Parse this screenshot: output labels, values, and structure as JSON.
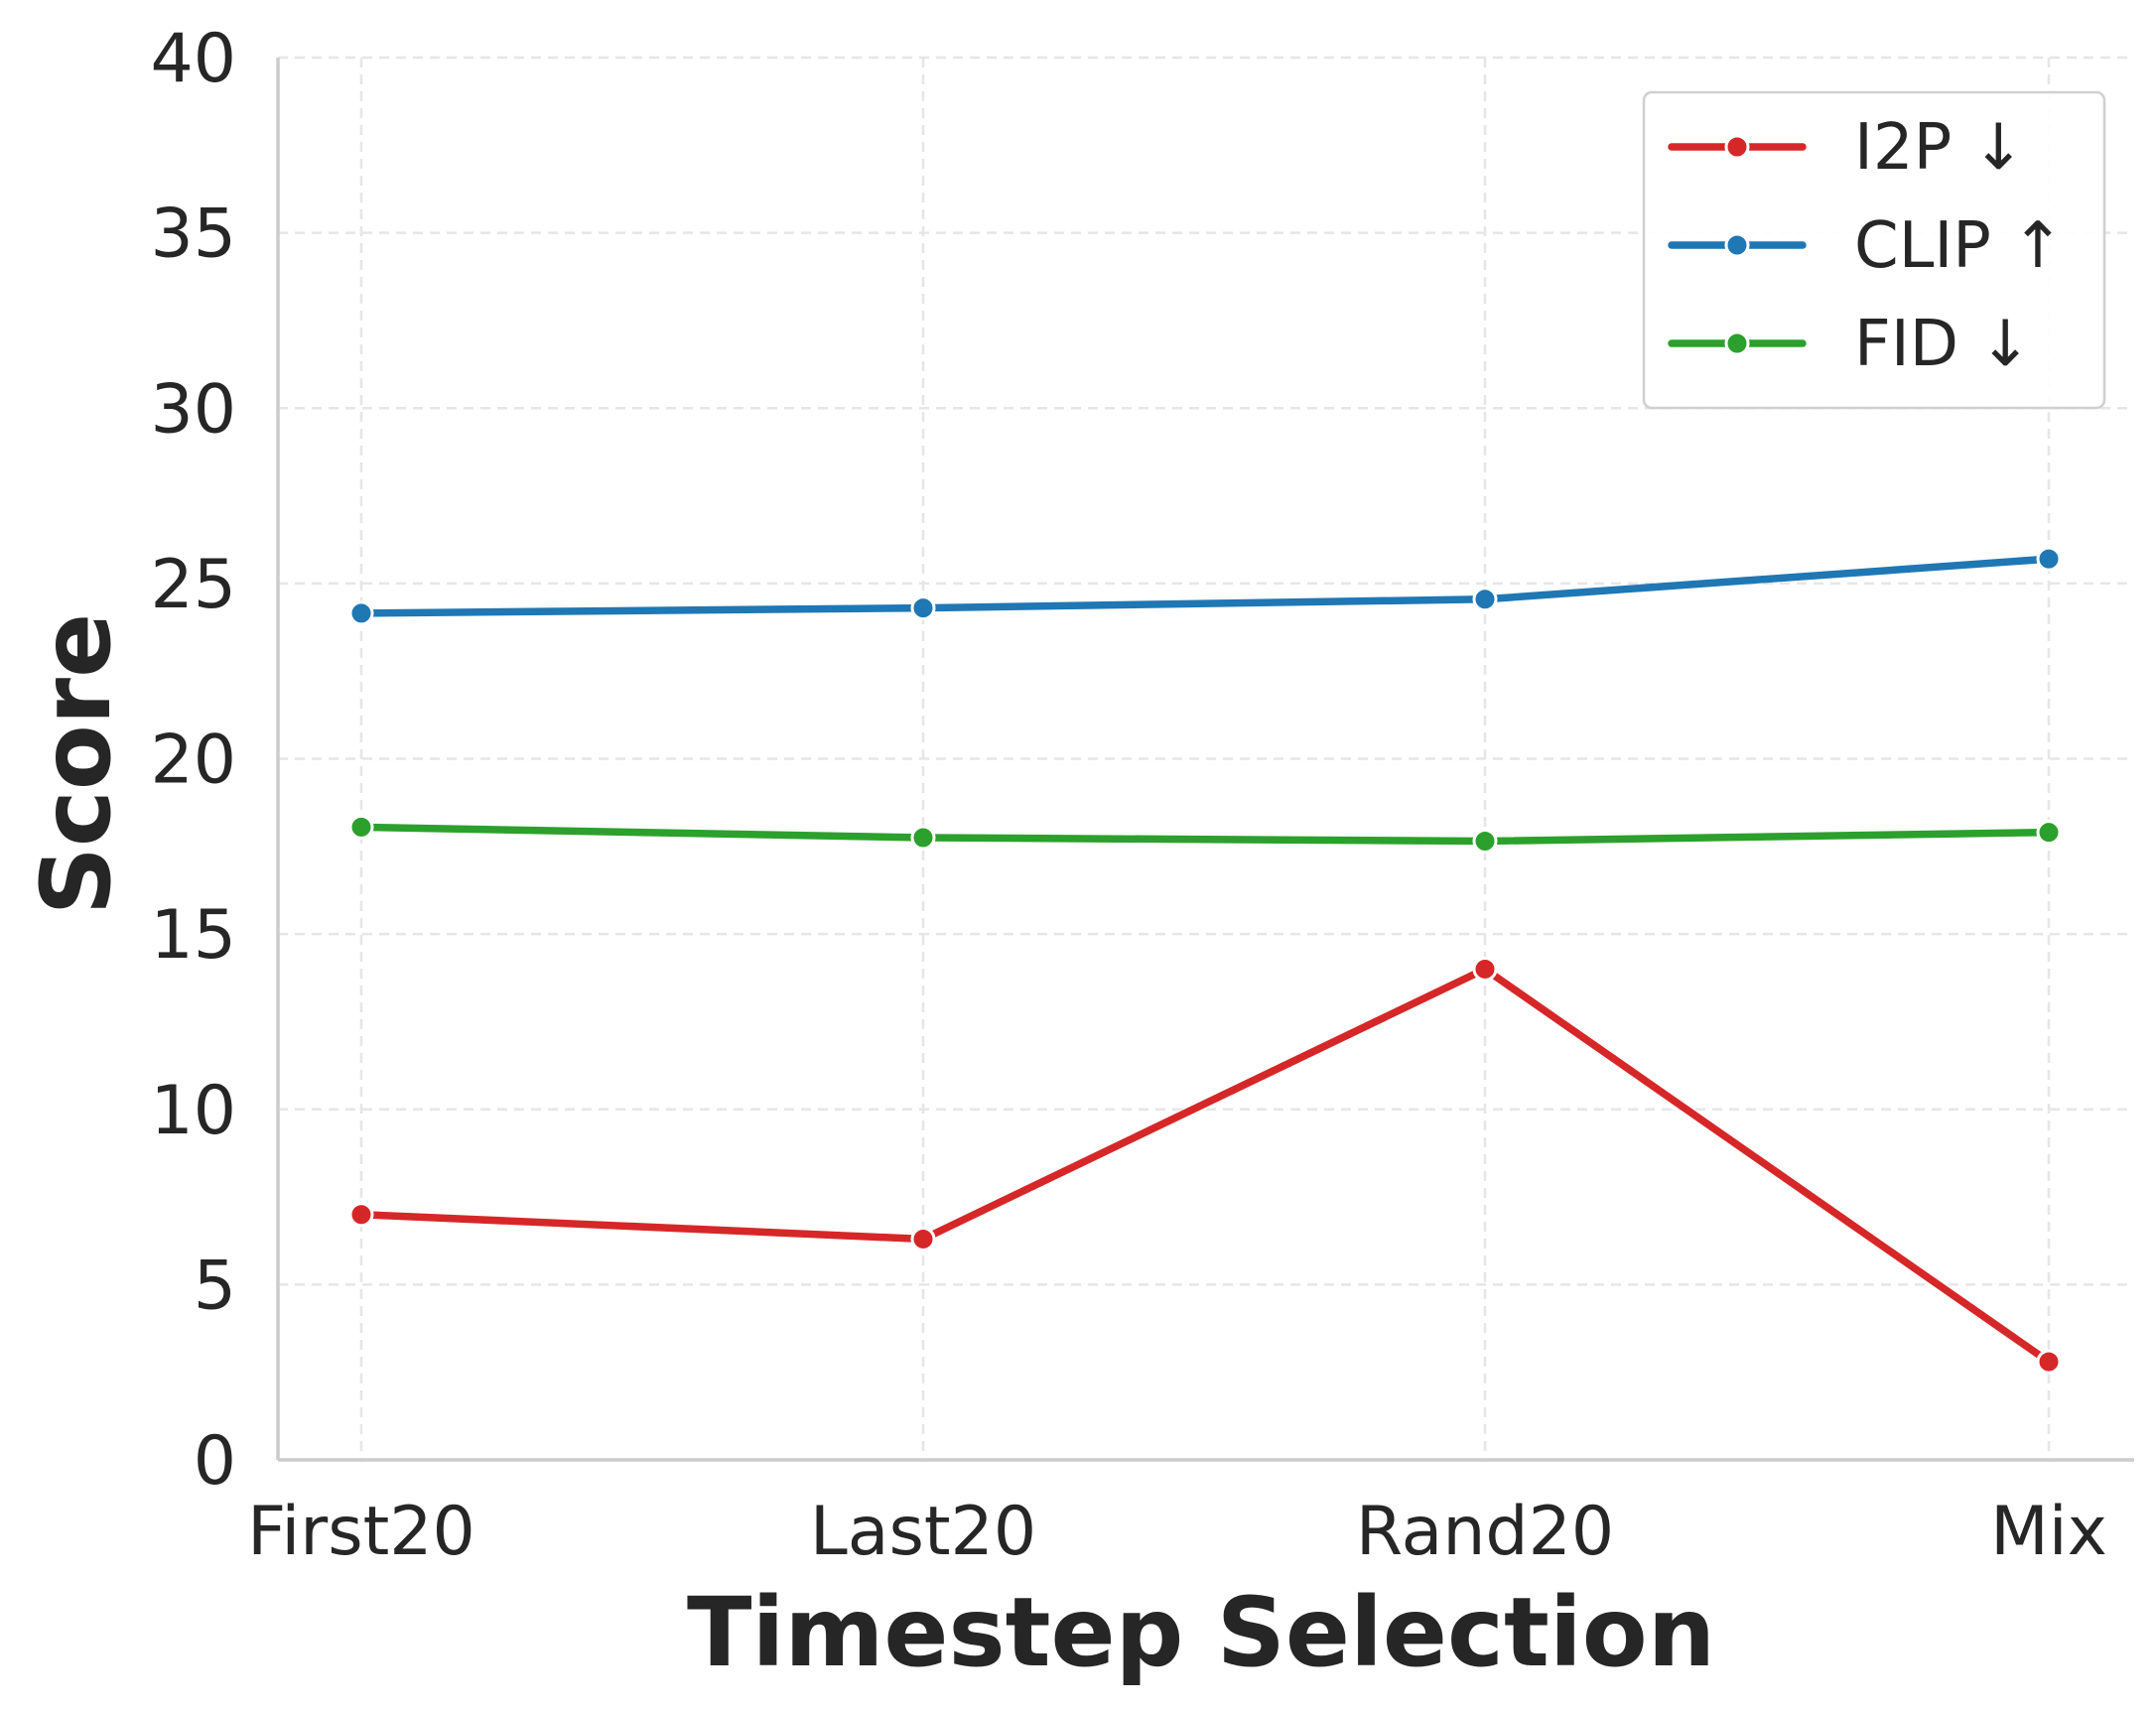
{
  "chart_data": {
    "type": "line",
    "categories": [
      "First20",
      "Last20",
      "Rand20",
      "Mix"
    ],
    "series": [
      {
        "name": "I2P ↓",
        "color": "#d62728",
        "values": [
          7.0,
          6.3,
          14.0,
          2.8
        ]
      },
      {
        "name": "CLIP ↑",
        "color": "#1f77b4",
        "values": [
          24.15,
          24.3,
          24.55,
          25.7
        ]
      },
      {
        "name": "FID ↓",
        "color": "#2ca02c",
        "values": [
          18.05,
          17.75,
          17.65,
          17.9
        ]
      }
    ],
    "xlabel": "Timestep Selection",
    "ylabel": "Score",
    "ylim": [
      0,
      40
    ],
    "yticks": [
      0,
      5,
      10,
      15,
      20,
      25,
      30,
      35,
      40
    ],
    "grid": true,
    "legend_position": "top-right"
  }
}
